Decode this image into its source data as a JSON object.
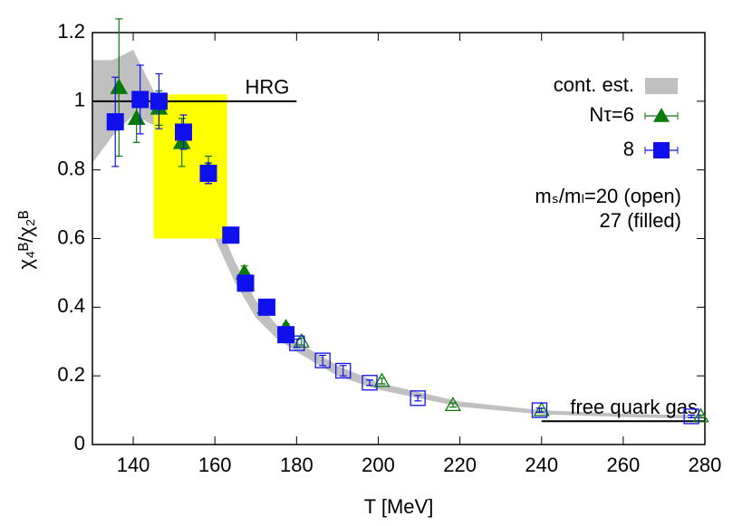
{
  "chart_data": {
    "type": "scatter",
    "xlabel": "T [MeV]",
    "ylabel": "χ₄ᴮ/χ₂ᴮ",
    "xlim": [
      130,
      280
    ],
    "xticks": [
      140,
      160,
      180,
      200,
      220,
      240,
      260,
      280
    ],
    "ylim": [
      0,
      1.2
    ],
    "yticks": [
      0,
      0.2,
      0.4,
      0.6,
      0.8,
      1,
      1.2
    ],
    "legend": "top-right",
    "band": {
      "name": "cont. est.",
      "color": "#c0c0c0",
      "x": [
        130,
        135,
        140,
        145,
        150,
        155,
        160,
        165,
        170,
        175,
        180,
        190,
        200,
        220,
        240,
        260,
        280
      ],
      "upper": [
        1.12,
        1.12,
        1.15,
        1.03,
        0.92,
        0.82,
        0.67,
        0.53,
        0.42,
        0.35,
        0.3,
        0.23,
        0.18,
        0.125,
        0.1,
        0.09,
        0.085
      ],
      "lower": [
        0.82,
        0.9,
        0.96,
        0.93,
        0.83,
        0.73,
        0.6,
        0.47,
        0.37,
        0.31,
        0.27,
        0.2,
        0.16,
        0.11,
        0.088,
        0.08,
        0.075
      ]
    },
    "box": {
      "color": "#ffff00",
      "x": [
        145,
        163
      ],
      "y": [
        0.6,
        1.02
      ]
    },
    "lines": [
      {
        "label": "HRG",
        "x": [
          130,
          180
        ],
        "y": 1
      },
      {
        "label": "free quark gas",
        "x": [
          240,
          280
        ],
        "y": 0.068
      }
    ],
    "series": [
      {
        "name": "Nτ=6",
        "color": "#0a7a0a",
        "marker": "triangle",
        "x": [
          136.5,
          140.8,
          146.3,
          151.9,
          158.4,
          163.9,
          167.2,
          172.4,
          177.4,
          181.2,
          200.9,
          218.3,
          240.0,
          279.0
        ],
        "values": [
          1.04,
          0.95,
          0.98,
          0.88,
          0.8,
          0.61,
          0.5,
          0.4,
          0.34,
          0.3,
          0.185,
          0.115,
          0.1,
          0.082
        ],
        "errors": [
          0.2,
          0.07,
          0.05,
          0.07,
          0.04,
          0.02,
          0.02,
          0.015,
          0.012,
          0.01,
          0.008,
          0.006,
          0.005,
          0.004
        ],
        "filled": [
          true,
          true,
          true,
          true,
          true,
          true,
          true,
          true,
          true,
          false,
          false,
          false,
          false,
          false
        ]
      },
      {
        "name": "8",
        "color": "#1010ee",
        "marker": "square",
        "x": [
          135.6,
          141.7,
          146.3,
          152.3,
          158.4,
          163.9,
          167.5,
          172.7,
          177.4,
          180.1,
          186.4,
          191.4,
          197.9,
          209.7,
          239.5,
          276.7
        ],
        "values": [
          0.94,
          1.005,
          1.0,
          0.91,
          0.79,
          0.61,
          0.47,
          0.4,
          0.32,
          0.295,
          0.245,
          0.215,
          0.18,
          0.135,
          0.1,
          0.082
        ],
        "errors": [
          0.13,
          0.1,
          0.08,
          0.05,
          0.03,
          0.02,
          0.015,
          0.012,
          0.01,
          0.012,
          0.015,
          0.015,
          0.008,
          0.008,
          0.006,
          0.004
        ],
        "filled": [
          true,
          true,
          true,
          true,
          true,
          true,
          true,
          true,
          true,
          false,
          false,
          false,
          false,
          false,
          false,
          false
        ]
      }
    ],
    "notes": [
      "mₛ/mₗ=20 (open)",
      "27 (filled)"
    ]
  }
}
